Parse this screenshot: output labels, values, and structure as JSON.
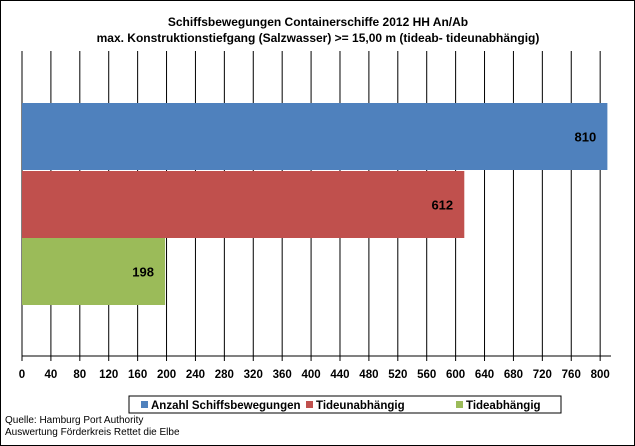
{
  "chart_data": {
    "type": "bar",
    "orientation": "horizontal",
    "title": [
      "Schiffsbewegungen  Containerschiffe  2012 HH An/Ab",
      "max. Konstruktionstiefgang  (Salzwasser) >= 15,00 m (tideab-  tideunabhängig)"
    ],
    "xlim": [
      0,
      800
    ],
    "x_ticks": [
      "0",
      "40",
      "80",
      "120",
      "160",
      "200",
      "240",
      "280",
      "320",
      "360",
      "400",
      "440",
      "480",
      "520",
      "560",
      "600",
      "640",
      "680",
      "720",
      "760",
      "800"
    ],
    "grid": "vertical",
    "legend_position": "bottom",
    "series": [
      {
        "name": "Anzahl Schiffsbewegungen",
        "value": 810,
        "label": "810",
        "color": "#4f81bd"
      },
      {
        "name": "Tideunabhängig",
        "value": 612,
        "label": "612",
        "color": "#c0504d"
      },
      {
        "name": "Tideabhängig",
        "value": 198,
        "label": "198",
        "color": "#9bbb59"
      }
    ]
  },
  "footer": {
    "source": "Quelle: Hamburg Port Authority",
    "evaluation": "Auswertung Förderkreis Rettet die Elbe"
  }
}
